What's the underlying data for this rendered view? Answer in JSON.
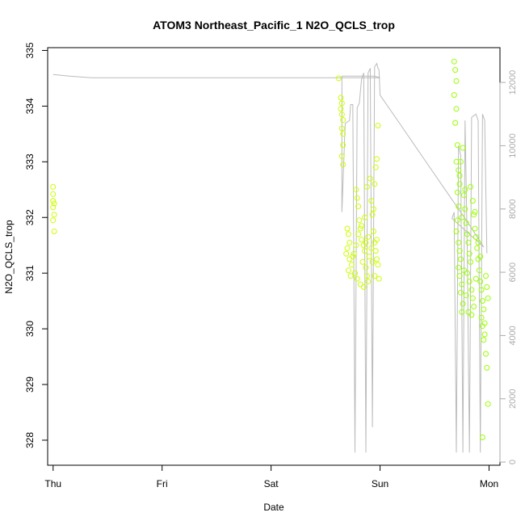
{
  "chart_data": {
    "type": "scatter",
    "title": "ATOM3 Northeast_Pacific_1 N2O_QCLS_trop",
    "xlabel": "Date",
    "ylabel": "N2O_QCLS_trop",
    "x_ticks": [
      "Thu",
      "Fri",
      "Sat",
      "Sun",
      "Mon"
    ],
    "xlim": [
      -0.05,
      4.1
    ],
    "ylim": [
      327.55,
      335.05
    ],
    "y_ticks": [
      328,
      329,
      330,
      331,
      332,
      333,
      334,
      335
    ],
    "y2lim": [
      -100,
      13100
    ],
    "y2_ticks": [
      0,
      2000,
      4000,
      6000,
      8000,
      10000,
      12000
    ],
    "grid": false,
    "legend": "none",
    "colors": {
      "points_flight1": "#ccff00",
      "points_flight2": "#99ff00",
      "altitude_line": "#bbbbbb",
      "axis": "#000000",
      "right_axis": "#aaaaaa"
    },
    "series": [
      {
        "values": [
          [
            0.0,
            332.55
          ],
          [
            0.0,
            332.42
          ],
          [
            0.01,
            332.25
          ],
          [
            0.0,
            332.18
          ],
          [
            0.01,
            332.05
          ],
          [
            0.0,
            331.95
          ],
          [
            0.01,
            331.75
          ],
          [
            0.0,
            332.3
          ],
          [
            2.62,
            334.5
          ],
          [
            2.64,
            334.15
          ],
          [
            2.65,
            334.05
          ],
          [
            2.64,
            333.95
          ],
          [
            2.65,
            333.85
          ],
          [
            2.66,
            333.75
          ],
          [
            2.65,
            333.6
          ],
          [
            2.66,
            333.5
          ],
          [
            2.66,
            333.3
          ],
          [
            2.65,
            333.1
          ],
          [
            2.66,
            332.95
          ],
          [
            2.7,
            331.8
          ],
          [
            2.71,
            331.7
          ],
          [
            2.72,
            331.55
          ],
          [
            2.7,
            331.45
          ],
          [
            2.69,
            331.35
          ],
          [
            2.72,
            331.25
          ],
          [
            2.74,
            331.15
          ],
          [
            2.71,
            331.05
          ],
          [
            2.73,
            330.95
          ],
          [
            2.75,
            331.3
          ],
          [
            2.78,
            332.5
          ],
          [
            2.79,
            332.35
          ],
          [
            2.8,
            332.2
          ],
          [
            2.81,
            331.95
          ],
          [
            2.82,
            331.8
          ],
          [
            2.83,
            331.6
          ],
          [
            2.85,
            331.5
          ],
          [
            2.86,
            331.4
          ],
          [
            2.84,
            331.2
          ],
          [
            2.87,
            331.1
          ],
          [
            2.88,
            330.95
          ],
          [
            2.89,
            330.85
          ],
          [
            2.9,
            331.3
          ],
          [
            2.91,
            332.7
          ],
          [
            2.92,
            332.3
          ],
          [
            2.93,
            332.05
          ],
          [
            2.94,
            331.75
          ],
          [
            2.95,
            331.55
          ],
          [
            2.96,
            331.4
          ],
          [
            2.97,
            331.25
          ],
          [
            2.98,
            331.15
          ],
          [
            2.99,
            330.9
          ],
          [
            2.98,
            333.65
          ],
          [
            2.97,
            333.05
          ],
          [
            2.96,
            332.9
          ],
          [
            2.95,
            332.6
          ],
          [
            2.94,
            332.15
          ],
          [
            2.88,
            332.55
          ],
          [
            2.86,
            332.0
          ],
          [
            2.83,
            331.85
          ],
          [
            2.8,
            331.7
          ],
          [
            2.78,
            331.5
          ],
          [
            2.76,
            331.35
          ],
          [
            2.77,
            331.0
          ],
          [
            2.79,
            330.9
          ],
          [
            2.82,
            330.8
          ],
          [
            2.85,
            330.75
          ],
          [
            2.87,
            331.55
          ],
          [
            2.89,
            331.65
          ],
          [
            2.92,
            331.45
          ],
          [
            2.93,
            331.2
          ],
          [
            2.95,
            330.95
          ],
          [
            2.97,
            331.6
          ]
        ]
      },
      {
        "values": [
          [
            3.68,
            334.8
          ],
          [
            3.69,
            334.65
          ],
          [
            3.7,
            334.45
          ],
          [
            3.68,
            334.2
          ],
          [
            3.7,
            333.95
          ],
          [
            3.69,
            333.7
          ],
          [
            3.71,
            333.3
          ],
          [
            3.7,
            333.0
          ],
          [
            3.72,
            332.85
          ],
          [
            3.73,
            332.6
          ],
          [
            3.71,
            332.45
          ],
          [
            3.72,
            332.2
          ],
          [
            3.71,
            331.95
          ],
          [
            3.7,
            331.75
          ],
          [
            3.72,
            331.55
          ],
          [
            3.73,
            331.4
          ],
          [
            3.74,
            331.25
          ],
          [
            3.72,
            331.1
          ],
          [
            3.73,
            330.95
          ],
          [
            3.75,
            330.8
          ],
          [
            3.74,
            330.65
          ],
          [
            3.76,
            330.45
          ],
          [
            3.75,
            330.3
          ],
          [
            3.77,
            332.4
          ],
          [
            3.78,
            332.15
          ],
          [
            3.79,
            331.9
          ],
          [
            3.8,
            331.7
          ],
          [
            3.81,
            331.55
          ],
          [
            3.82,
            331.35
          ],
          [
            3.83,
            331.2
          ],
          [
            3.8,
            331.0
          ],
          [
            3.82,
            330.85
          ],
          [
            3.84,
            330.7
          ],
          [
            3.85,
            330.55
          ],
          [
            3.86,
            330.4
          ],
          [
            3.84,
            330.25
          ],
          [
            3.83,
            332.55
          ],
          [
            3.85,
            332.3
          ],
          [
            3.86,
            332.05
          ],
          [
            3.87,
            331.8
          ],
          [
            3.88,
            331.65
          ],
          [
            3.89,
            331.45
          ],
          [
            3.9,
            331.25
          ],
          [
            3.91,
            331.05
          ],
          [
            3.92,
            330.85
          ],
          [
            3.93,
            330.7
          ],
          [
            3.94,
            330.5
          ],
          [
            3.95,
            330.35
          ],
          [
            3.93,
            330.2
          ],
          [
            3.94,
            330.05
          ],
          [
            3.96,
            329.9
          ],
          [
            3.95,
            329.8
          ],
          [
            3.97,
            329.55
          ],
          [
            3.98,
            329.3
          ],
          [
            3.99,
            328.65
          ],
          [
            3.94,
            328.05
          ],
          [
            3.97,
            330.95
          ],
          [
            3.98,
            330.75
          ],
          [
            3.99,
            330.55
          ],
          [
            3.96,
            330.1
          ],
          [
            3.76,
            333.25
          ],
          [
            3.74,
            333.0
          ],
          [
            3.73,
            332.75
          ],
          [
            3.75,
            332.0
          ],
          [
            3.77,
            331.05
          ],
          [
            3.79,
            330.6
          ],
          [
            3.81,
            330.3
          ],
          [
            3.78,
            332.5
          ],
          [
            3.87,
            332.1
          ],
          [
            3.9,
            331.55
          ],
          [
            3.92,
            331.3
          ],
          [
            3.88,
            330.9
          ]
        ]
      }
    ],
    "altitude_line": {
      "axis": "right",
      "values": [
        [
          0.0,
          12250
        ],
        [
          0.15,
          12200
        ],
        [
          0.35,
          12150
        ],
        [
          0.6,
          12150
        ],
        [
          0.9,
          12150
        ],
        [
          1.2,
          12150
        ],
        [
          1.6,
          12150
        ],
        [
          2.0,
          12150
        ],
        [
          2.4,
          12150
        ],
        [
          2.85,
          12150
        ],
        [
          3.0,
          12150
        ],
        [
          2.95,
          12200
        ],
        [
          2.8,
          12200
        ],
        [
          2.7,
          12200
        ],
        [
          2.65,
          12200
        ],
        [
          2.65,
          7900
        ],
        [
          2.68,
          10700
        ],
        [
          2.72,
          10800
        ],
        [
          2.73,
          11300
        ],
        [
          2.75,
          11300
        ],
        [
          2.77,
          300
        ],
        [
          2.79,
          11200
        ],
        [
          2.81,
          11350
        ],
        [
          2.83,
          12100
        ],
        [
          2.85,
          12300
        ],
        [
          2.87,
          300
        ],
        [
          2.89,
          12300
        ],
        [
          2.91,
          12450
        ],
        [
          2.93,
          1100
        ],
        [
          2.95,
          12500
        ],
        [
          2.97,
          12600
        ],
        [
          2.98,
          12450
        ],
        [
          2.99,
          12400
        ],
        [
          3.0,
          11600
        ],
        [
          3.2,
          10600
        ],
        [
          3.4,
          9600
        ],
        [
          3.6,
          8600
        ],
        [
          3.8,
          7600
        ],
        [
          3.95,
          6800
        ],
        [
          3.66,
          7700
        ],
        [
          3.68,
          7900
        ],
        [
          3.7,
          300
        ],
        [
          3.72,
          10000
        ],
        [
          3.74,
          9700
        ],
        [
          3.76,
          300
        ],
        [
          3.78,
          10800
        ],
        [
          3.8,
          6800
        ],
        [
          3.82,
          300
        ],
        [
          3.84,
          10900
        ],
        [
          3.86,
          10950
        ],
        [
          3.88,
          11000
        ],
        [
          3.9,
          10800
        ],
        [
          3.92,
          300
        ],
        [
          3.94,
          11000
        ],
        [
          3.96,
          10800
        ],
        [
          3.98,
          6600
        ]
      ]
    }
  }
}
